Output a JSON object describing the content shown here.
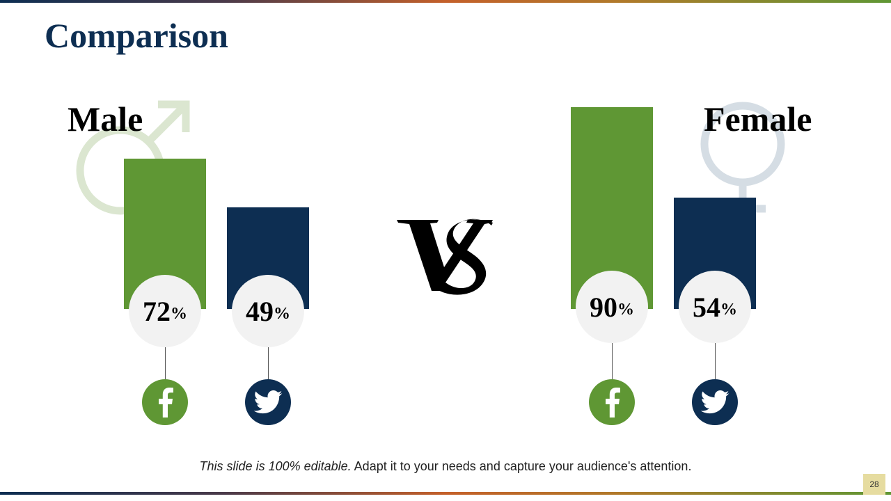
{
  "title": "Comparison",
  "colors": {
    "green": "#5f9734",
    "navy": "#0d2e52",
    "circle": "#f2f2f2"
  },
  "male": {
    "label": "Male",
    "symbol_icon": "male-symbol-icon",
    "items": [
      {
        "platform": "facebook",
        "icon": "facebook-icon",
        "value": 72,
        "value_text": "72",
        "unit": "%"
      },
      {
        "platform": "twitter",
        "icon": "twitter-icon",
        "value": 49,
        "value_text": "49",
        "unit": "%"
      }
    ]
  },
  "female": {
    "label": "Female",
    "symbol_icon": "female-symbol-icon",
    "items": [
      {
        "platform": "facebook",
        "icon": "facebook-icon",
        "value": 90,
        "value_text": "90",
        "unit": "%"
      },
      {
        "platform": "twitter",
        "icon": "twitter-icon",
        "value": 54,
        "value_text": "54",
        "unit": "%"
      }
    ]
  },
  "vs_icon": "vs-icon",
  "footer": {
    "italic": "This slide is 100% editable.",
    "rest": " Adapt it to your needs and capture your audience's attention."
  },
  "page_number": "28"
}
